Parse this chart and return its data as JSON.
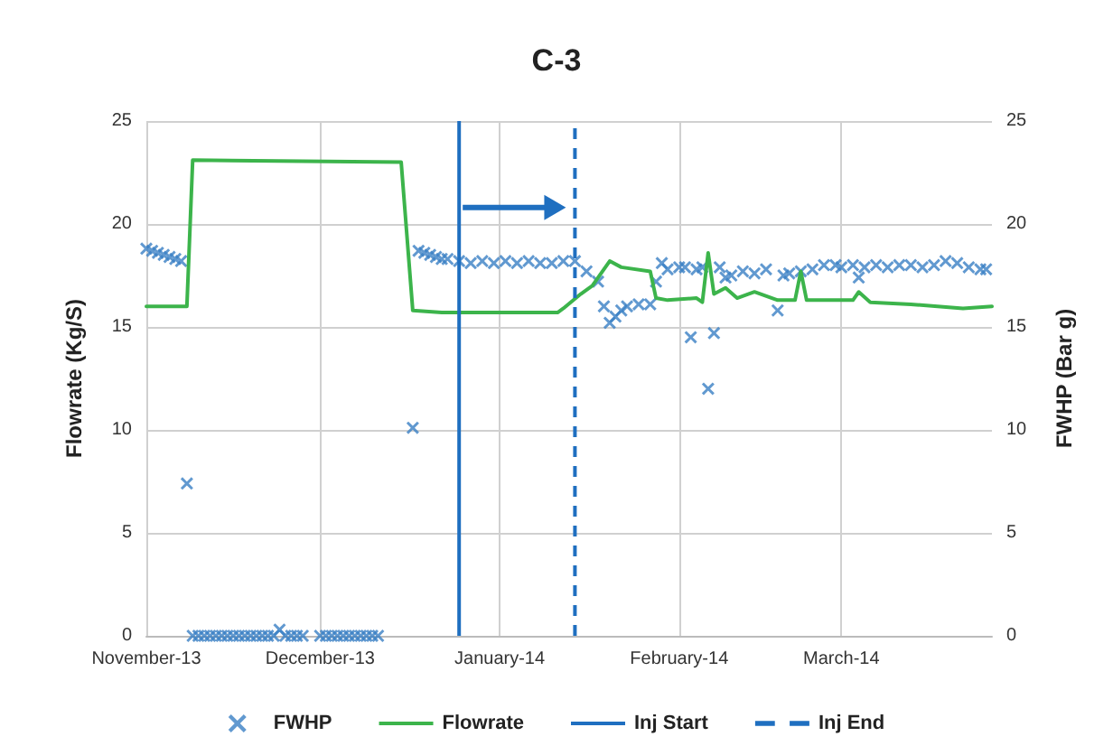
{
  "chart_data": {
    "type": "scatter",
    "title": "C-3",
    "ylabel": "Flowrate (Kg/S)",
    "y2label": "FWHP (Bar g)",
    "xlim": [
      "2013-11-01",
      "2014-03-27"
    ],
    "xticks": [
      {
        "value": "2013-11-01",
        "label": "November-13"
      },
      {
        "value": "2013-12-01",
        "label": "December-13"
      },
      {
        "value": "2014-01-01",
        "label": "January-14"
      },
      {
        "value": "2014-02-01",
        "label": "February-14"
      },
      {
        "value": "2014-03-01",
        "label": "March-14"
      }
    ],
    "ylim": [
      0,
      25
    ],
    "yticks": [
      0,
      5,
      10,
      15,
      20,
      25
    ],
    "y2lim": [
      0,
      25
    ],
    "y2ticks": [
      0,
      5,
      10,
      15,
      20,
      25
    ],
    "grid": true,
    "legend": "bottom",
    "series": [
      {
        "name": "FWHP",
        "axis": "y2",
        "marker": "cross",
        "color": "#3a7fc4",
        "x": [
          "2013-11-01",
          "2013-11-02",
          "2013-11-03",
          "2013-11-04",
          "2013-11-05",
          "2013-11-06",
          "2013-11-07",
          "2013-11-08",
          "2013-11-09",
          "2013-11-10",
          "2013-11-11",
          "2013-11-12",
          "2013-11-13",
          "2013-11-14",
          "2013-11-15",
          "2013-11-16",
          "2013-11-17",
          "2013-11-18",
          "2013-11-19",
          "2013-11-20",
          "2013-11-21",
          "2013-11-22",
          "2013-11-23",
          "2013-11-24",
          "2013-11-25",
          "2013-11-26",
          "2013-11-27",
          "2013-11-28",
          "2013-12-01",
          "2013-12-02",
          "2013-12-03",
          "2013-12-04",
          "2013-12-05",
          "2013-12-06",
          "2013-12-07",
          "2013-12-08",
          "2013-12-09",
          "2013-12-10",
          "2013-12-11",
          "2013-12-17",
          "2013-12-18",
          "2013-12-19",
          "2013-12-20",
          "2013-12-21",
          "2013-12-22",
          "2013-12-23",
          "2013-12-25",
          "2013-12-27",
          "2013-12-29",
          "2013-12-31",
          "2014-01-02",
          "2014-01-04",
          "2014-01-06",
          "2014-01-08",
          "2014-01-10",
          "2014-01-12",
          "2014-01-14",
          "2014-01-16",
          "2014-01-18",
          "2014-01-19",
          "2014-01-20",
          "2014-01-21",
          "2014-01-22",
          "2014-01-23",
          "2014-01-25",
          "2014-01-27",
          "2014-01-28",
          "2014-01-29",
          "2014-01-30",
          "2014-02-01",
          "2014-02-02",
          "2014-02-03",
          "2014-02-04",
          "2014-02-05",
          "2014-02-06",
          "2014-02-07",
          "2014-02-08",
          "2014-02-09",
          "2014-02-10",
          "2014-02-12",
          "2014-02-14",
          "2014-02-16",
          "2014-02-18",
          "2014-02-19",
          "2014-02-20",
          "2014-02-22",
          "2014-02-24",
          "2014-02-26",
          "2014-02-28",
          "2014-03-01",
          "2014-03-03",
          "2014-03-04",
          "2014-03-05",
          "2014-03-07",
          "2014-03-09",
          "2014-03-11",
          "2014-03-13",
          "2014-03-15",
          "2014-03-17",
          "2014-03-19",
          "2014-03-21",
          "2014-03-23",
          "2014-03-25",
          "2014-03-26"
        ],
        "values": [
          18.8,
          18.7,
          18.6,
          18.5,
          18.4,
          18.3,
          18.2,
          7.4,
          0,
          0,
          0,
          0,
          0,
          0,
          0,
          0,
          0,
          0,
          0,
          0,
          0,
          0,
          0,
          0.3,
          0,
          0,
          0,
          0,
          0,
          0,
          0,
          0,
          0,
          0,
          0,
          0,
          0,
          0,
          0,
          10.1,
          18.7,
          18.6,
          18.5,
          18.4,
          18.3,
          18.3,
          18.2,
          18.1,
          18.2,
          18.1,
          18.2,
          18.1,
          18.2,
          18.1,
          18.1,
          18.2,
          18.2,
          17.7,
          17.2,
          16.0,
          15.2,
          15.5,
          15.8,
          16.0,
          16.1,
          16.1,
          17.2,
          18.1,
          17.8,
          17.9,
          17.9,
          14.5,
          17.8,
          17.9,
          12.0,
          14.7,
          17.9,
          17.4,
          17.5,
          17.7,
          17.6,
          17.8,
          15.8,
          17.5,
          17.6,
          17.7,
          17.8,
          18.0,
          18.0,
          17.9,
          18.0,
          17.4,
          17.9,
          18.0,
          17.9,
          18.0,
          18.0,
          17.9,
          18.0,
          18.2,
          18.1,
          17.9,
          17.8,
          17.8
        ]
      },
      {
        "name": "Flowrate",
        "type": "line",
        "marker": "none",
        "line_style": "solid",
        "color": "#3cb44b",
        "x": [
          "2013-11-01",
          "2013-11-08",
          "2013-11-09",
          "2013-12-15",
          "2013-12-17",
          "2013-12-22",
          "2014-01-11",
          "2014-01-12",
          "2014-01-15",
          "2014-01-17",
          "2014-01-20",
          "2014-01-22",
          "2014-01-27",
          "2014-01-28",
          "2014-01-30",
          "2014-02-04",
          "2014-02-05",
          "2014-02-06",
          "2014-02-07",
          "2014-02-09",
          "2014-02-11",
          "2014-02-14",
          "2014-02-18",
          "2014-02-21",
          "2014-02-22",
          "2014-02-23",
          "2014-02-27",
          "2014-03-03",
          "2014-03-04",
          "2014-03-06",
          "2014-03-13",
          "2014-03-22",
          "2014-03-27"
        ],
        "values": [
          16.0,
          16.0,
          23.1,
          23.0,
          15.8,
          15.7,
          15.7,
          15.9,
          16.6,
          17.0,
          18.2,
          17.9,
          17.7,
          16.4,
          16.3,
          16.4,
          16.2,
          18.6,
          16.6,
          16.9,
          16.4,
          16.7,
          16.3,
          16.3,
          17.7,
          16.3,
          16.3,
          16.3,
          16.7,
          16.2,
          16.1,
          15.9,
          16.0
        ]
      }
    ],
    "ref_lines": [
      {
        "axis": "x",
        "value": "2013-12-25",
        "label": "Inj Start",
        "color": "#1f6fc0",
        "line_style": "solid"
      },
      {
        "axis": "x",
        "value": "2014-01-14",
        "label": "Inj End",
        "color": "#1f6fc0",
        "line_style": "dashed"
      }
    ]
  }
}
